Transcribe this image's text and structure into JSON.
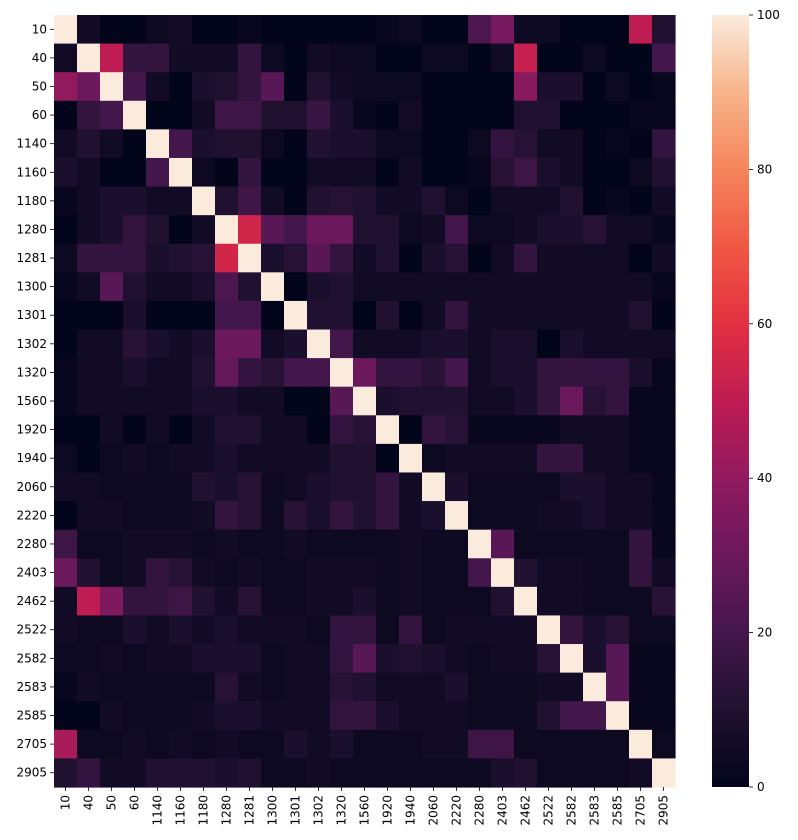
{
  "chart_data": {
    "type": "heatmap",
    "title": "",
    "xlabel": "",
    "ylabel": "",
    "labels": [
      "10",
      "40",
      "50",
      "60",
      "1140",
      "1160",
      "1180",
      "1280",
      "1281",
      "1300",
      "1301",
      "1302",
      "1320",
      "1560",
      "1920",
      "1940",
      "2060",
      "2220",
      "2280",
      "2403",
      "2462",
      "2522",
      "2582",
      "2583",
      "2585",
      "2705",
      "2905"
    ],
    "matrix": [
      [
        100,
        5,
        0,
        0,
        3,
        6,
        0,
        0,
        2,
        0,
        0,
        0,
        0,
        0,
        2,
        3,
        0,
        0,
        22,
        33,
        4,
        4,
        0,
        0,
        0,
        50,
        10
      ],
      [
        5,
        100,
        50,
        15,
        15,
        5,
        5,
        5,
        15,
        4,
        0,
        5,
        3,
        3,
        0,
        0,
        3,
        3,
        0,
        5,
        52,
        0,
        0,
        3,
        0,
        0,
        20
      ],
      [
        40,
        30,
        100,
        20,
        5,
        0,
        8,
        10,
        15,
        25,
        0,
        10,
        5,
        3,
        3,
        3,
        0,
        0,
        0,
        0,
        38,
        8,
        8,
        0,
        3,
        0,
        2
      ],
      [
        0,
        15,
        20,
        100,
        0,
        0,
        5,
        18,
        18,
        10,
        10,
        17,
        8,
        2,
        0,
        6,
        0,
        0,
        0,
        0,
        10,
        10,
        0,
        0,
        0,
        2,
        2
      ],
      [
        5,
        10,
        5,
        0,
        100,
        20,
        8,
        10,
        10,
        3,
        0,
        10,
        8,
        8,
        3,
        3,
        0,
        0,
        3,
        15,
        12,
        5,
        5,
        0,
        2,
        0,
        15
      ],
      [
        8,
        5,
        0,
        0,
        20,
        100,
        3,
        0,
        15,
        0,
        0,
        5,
        5,
        5,
        0,
        5,
        0,
        0,
        2,
        12,
        18,
        8,
        5,
        0,
        0,
        3,
        10
      ],
      [
        2,
        5,
        8,
        8,
        5,
        5,
        100,
        10,
        18,
        5,
        0,
        10,
        12,
        10,
        5,
        5,
        10,
        3,
        0,
        5,
        5,
        5,
        10,
        0,
        2,
        0,
        5
      ],
      [
        0,
        5,
        8,
        15,
        10,
        0,
        5,
        100,
        55,
        25,
        20,
        30,
        30,
        10,
        10,
        3,
        5,
        20,
        3,
        3,
        5,
        8,
        8,
        12,
        5,
        5,
        2
      ],
      [
        3,
        15,
        15,
        15,
        8,
        10,
        12,
        55,
        100,
        8,
        12,
        25,
        15,
        5,
        10,
        0,
        8,
        12,
        0,
        5,
        15,
        5,
        5,
        5,
        5,
        0,
        5
      ],
      [
        2,
        5,
        25,
        10,
        5,
        5,
        8,
        22,
        10,
        100,
        0,
        8,
        10,
        5,
        5,
        5,
        5,
        5,
        5,
        5,
        5,
        5,
        5,
        5,
        5,
        5,
        2
      ],
      [
        0,
        0,
        0,
        8,
        0,
        0,
        0,
        20,
        20,
        0,
        100,
        10,
        10,
        0,
        10,
        0,
        5,
        15,
        5,
        5,
        5,
        5,
        5,
        5,
        5,
        10,
        0
      ],
      [
        0,
        5,
        5,
        12,
        8,
        5,
        8,
        30,
        30,
        5,
        8,
        100,
        20,
        5,
        5,
        5,
        8,
        8,
        5,
        8,
        8,
        0,
        8,
        5,
        5,
        5,
        5
      ],
      [
        2,
        5,
        5,
        8,
        5,
        5,
        10,
        28,
        15,
        12,
        20,
        20,
        100,
        30,
        15,
        15,
        12,
        20,
        5,
        8,
        8,
        15,
        15,
        15,
        15,
        8,
        2
      ],
      [
        2,
        5,
        5,
        5,
        5,
        5,
        8,
        8,
        5,
        5,
        0,
        0,
        25,
        100,
        8,
        10,
        10,
        10,
        5,
        5,
        8,
        15,
        30,
        12,
        15,
        2,
        2
      ],
      [
        0,
        0,
        5,
        0,
        5,
        0,
        5,
        10,
        10,
        5,
        5,
        0,
        15,
        12,
        100,
        0,
        15,
        12,
        2,
        2,
        2,
        2,
        5,
        5,
        5,
        2,
        2
      ],
      [
        3,
        0,
        3,
        5,
        3,
        5,
        5,
        8,
        5,
        5,
        5,
        5,
        10,
        10,
        0,
        100,
        3,
        5,
        5,
        5,
        5,
        15,
        15,
        5,
        5,
        2,
        2
      ],
      [
        5,
        5,
        3,
        3,
        3,
        3,
        10,
        8,
        12,
        3,
        5,
        8,
        10,
        10,
        15,
        5,
        100,
        8,
        3,
        3,
        3,
        3,
        8,
        8,
        5,
        5,
        2
      ],
      [
        0,
        5,
        5,
        3,
        3,
        3,
        5,
        15,
        12,
        3,
        12,
        8,
        15,
        10,
        15,
        5,
        8,
        100,
        3,
        3,
        3,
        5,
        5,
        8,
        5,
        5,
        2
      ],
      [
        18,
        3,
        3,
        5,
        5,
        5,
        3,
        5,
        3,
        3,
        5,
        3,
        3,
        3,
        3,
        5,
        3,
        3,
        100,
        25,
        3,
        3,
        3,
        3,
        3,
        15,
        2
      ],
      [
        30,
        10,
        3,
        5,
        15,
        12,
        5,
        3,
        5,
        3,
        3,
        5,
        5,
        5,
        3,
        5,
        3,
        3,
        20,
        100,
        10,
        5,
        5,
        3,
        3,
        15,
        5
      ],
      [
        5,
        50,
        35,
        15,
        15,
        18,
        10,
        5,
        12,
        3,
        3,
        5,
        5,
        8,
        3,
        5,
        3,
        3,
        3,
        10,
        100,
        5,
        5,
        3,
        3,
        3,
        12
      ],
      [
        5,
        3,
        3,
        8,
        5,
        8,
        5,
        8,
        5,
        5,
        5,
        3,
        15,
        15,
        3,
        15,
        3,
        5,
        5,
        5,
        5,
        100,
        15,
        8,
        12,
        3,
        3
      ],
      [
        3,
        3,
        5,
        3,
        5,
        5,
        8,
        8,
        8,
        3,
        5,
        5,
        15,
        25,
        8,
        10,
        8,
        5,
        3,
        5,
        5,
        12,
        100,
        8,
        25,
        2,
        2
      ],
      [
        2,
        5,
        3,
        3,
        3,
        3,
        3,
        12,
        5,
        3,
        5,
        5,
        12,
        10,
        5,
        5,
        5,
        8,
        3,
        3,
        3,
        5,
        5,
        100,
        25,
        2,
        2
      ],
      [
        0,
        0,
        5,
        3,
        3,
        3,
        5,
        8,
        8,
        5,
        5,
        5,
        15,
        15,
        8,
        5,
        5,
        5,
        3,
        3,
        3,
        10,
        20,
        20,
        100,
        2,
        2
      ],
      [
        45,
        3,
        3,
        5,
        3,
        5,
        3,
        5,
        3,
        3,
        8,
        5,
        8,
        3,
        3,
        3,
        5,
        5,
        18,
        18,
        3,
        3,
        3,
        3,
        3,
        100,
        3
      ],
      [
        10,
        15,
        5,
        5,
        10,
        10,
        10,
        8,
        10,
        3,
        3,
        5,
        3,
        3,
        3,
        3,
        3,
        3,
        3,
        8,
        10,
        3,
        3,
        3,
        3,
        5,
        100
      ]
    ],
    "colorbar": {
      "min": 0,
      "max": 100,
      "ticks": [
        0,
        20,
        40,
        60,
        80,
        100
      ]
    },
    "colormap": "rocket",
    "grid": false
  }
}
